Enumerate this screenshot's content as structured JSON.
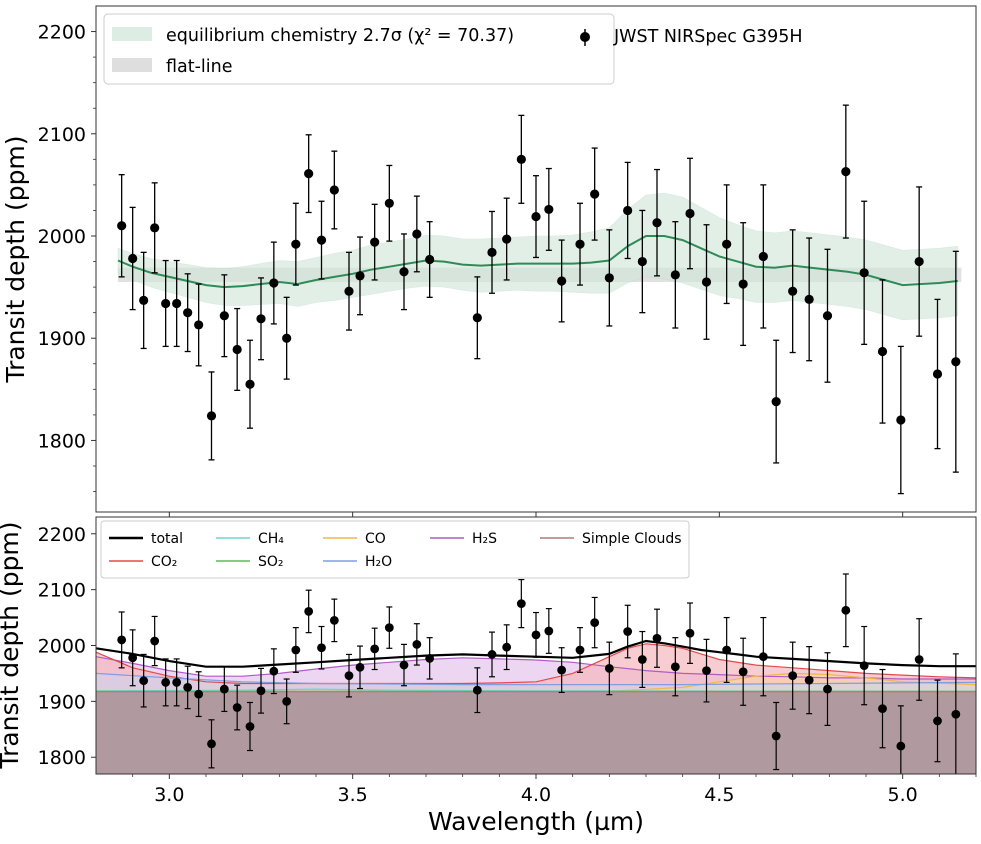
{
  "chart_data": [
    {
      "type": "scatter",
      "panel": "top",
      "title": "",
      "xlabel": "",
      "ylabel": "Transit depth (ppm)",
      "xlim": [
        2.8,
        5.2
      ],
      "ylim": [
        1730,
        2225
      ],
      "yticks": [
        1800,
        1900,
        2000,
        2100,
        2200
      ],
      "grid": false,
      "legend_position": "top",
      "legend": {
        "model": "equilibrium chemistry 2.7σ (χ² = 70.37)",
        "flat": "flat-line",
        "data": "JWST NIRSpec G395H"
      },
      "observations": {
        "name": "JWST NIRSpec G395H",
        "points": [
          [
            2.87,
            2010,
            50
          ],
          [
            2.9,
            1978,
            50
          ],
          [
            2.93,
            1937,
            47
          ],
          [
            2.96,
            2008,
            44
          ],
          [
            2.99,
            1934,
            42
          ],
          [
            3.02,
            1934,
            42
          ],
          [
            3.05,
            1925,
            38
          ],
          [
            3.08,
            1913,
            40
          ],
          [
            3.115,
            1824,
            43
          ],
          [
            3.15,
            1922,
            40
          ],
          [
            3.185,
            1889,
            40
          ],
          [
            3.22,
            1855,
            43
          ],
          [
            3.25,
            1919,
            40
          ],
          [
            3.285,
            1954,
            40
          ],
          [
            3.32,
            1900,
            40
          ],
          [
            3.345,
            1992,
            40
          ],
          [
            3.38,
            2061,
            38
          ],
          [
            3.415,
            1996,
            38
          ],
          [
            3.45,
            2045,
            38
          ],
          [
            3.49,
            1946,
            38
          ],
          [
            3.52,
            1961,
            38
          ],
          [
            3.56,
            1994,
            37
          ],
          [
            3.6,
            2032,
            37
          ],
          [
            3.64,
            1965,
            37
          ],
          [
            3.675,
            2002,
            37
          ],
          [
            3.71,
            1977,
            37
          ],
          [
            3.84,
            1920,
            40
          ],
          [
            3.88,
            1984,
            40
          ],
          [
            3.92,
            1997,
            40
          ],
          [
            3.96,
            2075,
            43
          ],
          [
            4.0,
            2019,
            40
          ],
          [
            4.035,
            2026,
            40
          ],
          [
            4.07,
            1956,
            40
          ],
          [
            4.12,
            1992,
            40
          ],
          [
            4.16,
            2041,
            45
          ],
          [
            4.2,
            1959,
            47
          ],
          [
            4.25,
            2025,
            47
          ],
          [
            4.29,
            1975,
            50
          ],
          [
            4.33,
            2013,
            52
          ],
          [
            4.38,
            1962,
            52
          ],
          [
            4.42,
            2022,
            54
          ],
          [
            4.465,
            1955,
            56
          ],
          [
            4.52,
            1992,
            58
          ],
          [
            4.565,
            1953,
            60
          ],
          [
            4.62,
            1980,
            70
          ],
          [
            4.655,
            1838,
            60
          ],
          [
            4.7,
            1946,
            60
          ],
          [
            4.745,
            1938,
            60
          ],
          [
            4.795,
            1922,
            65
          ],
          [
            4.845,
            2063,
            65
          ],
          [
            4.895,
            1964,
            70
          ],
          [
            4.945,
            1887,
            70
          ],
          [
            4.995,
            1820,
            72
          ],
          [
            5.045,
            1975,
            73
          ],
          [
            5.095,
            1865,
            73
          ],
          [
            5.145,
            1877,
            108
          ]
        ]
      },
      "model_line": {
        "name": "equilibrium chemistry",
        "x": [
          2.86,
          2.9,
          2.95,
          3.0,
          3.05,
          3.1,
          3.15,
          3.2,
          3.25,
          3.3,
          3.35,
          3.4,
          3.45,
          3.5,
          3.55,
          3.6,
          3.65,
          3.7,
          3.75,
          3.8,
          3.85,
          3.9,
          3.95,
          4.0,
          4.05,
          4.1,
          4.15,
          4.2,
          4.25,
          4.3,
          4.35,
          4.4,
          4.45,
          4.5,
          4.55,
          4.6,
          4.65,
          4.7,
          4.75,
          4.8,
          4.85,
          4.9,
          4.95,
          5.0,
          5.05,
          5.1,
          5.15
        ],
        "y": [
          1976,
          1970,
          1964,
          1960,
          1956,
          1952,
          1950,
          1951,
          1953,
          1955,
          1953,
          1957,
          1960,
          1963,
          1967,
          1970,
          1973,
          1976,
          1975,
          1972,
          1971,
          1972,
          1973,
          1973,
          1973,
          1973,
          1974,
          1976,
          1990,
          2000,
          2000,
          1996,
          1988,
          1980,
          1975,
          1970,
          1969,
          1971,
          1969,
          1967,
          1965,
          1962,
          1957,
          1952,
          1953,
          1954,
          1956
        ],
        "sigma_band": [
          12,
          13,
          14,
          15,
          16,
          17,
          18,
          19,
          20,
          21,
          22,
          22,
          23,
          23,
          24,
          24,
          24,
          25,
          25,
          25,
          26,
          26,
          26,
          27,
          27,
          28,
          30,
          32,
          36,
          40,
          42,
          42,
          40,
          38,
          36,
          35,
          34,
          34,
          34,
          34,
          34,
          34,
          34,
          34,
          34,
          34,
          34
        ]
      },
      "flat_line": {
        "y": 1962,
        "band": 7,
        "x_range": [
          2.86,
          5.16
        ]
      }
    },
    {
      "type": "area",
      "panel": "bottom",
      "title": "",
      "xlabel": "Wavelength (µm)",
      "ylabel": "Transit depth (ppm)",
      "xlim": [
        2.8,
        5.2
      ],
      "ylim": [
        1770,
        2230
      ],
      "xticks": [
        3.0,
        3.5,
        4.0,
        4.5,
        5.0
      ],
      "xtick_labels": [
        "3.0",
        "3.5",
        "4.0",
        "4.5",
        "5.0"
      ],
      "yticks": [
        1800,
        1900,
        2000,
        2100,
        2200
      ],
      "grid": false,
      "legend_position": "top-left",
      "legend": [
        {
          "name": "total",
          "color": "#000000"
        },
        {
          "name": "CO₂",
          "color": "#e24a4a"
        },
        {
          "name": "CH₄",
          "color": "#6fd5c9"
        },
        {
          "name": "SO₂",
          "color": "#5fb85c"
        },
        {
          "name": "CO",
          "color": "#f1b64c"
        },
        {
          "name": "H₂O",
          "color": "#7f9fe0"
        },
        {
          "name": "H₂S",
          "color": "#b05cc4"
        },
        {
          "name": "Simple Clouds",
          "color": "#b07a7a"
        }
      ],
      "total": {
        "x": [
          2.8,
          2.9,
          3.0,
          3.1,
          3.2,
          3.3,
          3.4,
          3.5,
          3.6,
          3.7,
          3.8,
          3.9,
          4.0,
          4.1,
          4.2,
          4.25,
          4.3,
          4.35,
          4.4,
          4.45,
          4.5,
          4.55,
          4.6,
          4.7,
          4.8,
          4.9,
          5.0,
          5.1,
          5.2
        ],
        "y": [
          1995,
          1985,
          1972,
          1962,
          1962,
          1966,
          1970,
          1974,
          1978,
          1982,
          1984,
          1982,
          1980,
          1978,
          1985,
          1998,
          2008,
          2004,
          1998,
          1992,
          1988,
          1984,
          1980,
          1976,
          1972,
          1968,
          1965,
          1963,
          1963
        ]
      },
      "clouds_level": 1917,
      "co2": {
        "x": [
          2.8,
          2.9,
          3.0,
          3.1,
          3.2,
          3.3,
          3.4,
          3.5,
          3.6,
          3.7,
          3.8,
          3.9,
          4.0,
          4.1,
          4.15,
          4.2,
          4.25,
          4.3,
          4.35,
          4.4,
          4.45,
          4.5,
          4.6,
          4.7,
          4.8,
          4.9,
          5.0,
          5.1,
          5.2
        ],
        "y": [
          1988,
          1960,
          1945,
          1935,
          1932,
          1932,
          1932,
          1932,
          1932,
          1932,
          1932,
          1933,
          1935,
          1950,
          1965,
          1980,
          1995,
          2003,
          2000,
          1995,
          1985,
          1975,
          1965,
          1960,
          1955,
          1950,
          1947,
          1944,
          1942
        ]
      },
      "h2s": {
        "x": [
          2.8,
          2.9,
          3.0,
          3.1,
          3.2,
          3.3,
          3.4,
          3.5,
          3.6,
          3.7,
          3.8,
          3.9,
          4.0,
          4.1,
          4.2,
          4.3,
          4.4,
          4.5,
          4.6,
          4.7,
          4.8,
          4.9,
          5.0,
          5.1,
          5.2
        ],
        "y": [
          1980,
          1968,
          1955,
          1945,
          1945,
          1950,
          1958,
          1965,
          1970,
          1975,
          1978,
          1976,
          1974,
          1970,
          1962,
          1955,
          1950,
          1948,
          1945,
          1944,
          1942,
          1942,
          1940,
          1940,
          1940
        ]
      },
      "h2o": {
        "x": [
          2.8,
          3.0,
          3.2,
          3.4,
          3.6,
          3.8,
          4.0,
          4.2,
          4.4,
          4.6,
          4.8,
          5.0,
          5.2
        ],
        "y": [
          1950,
          1942,
          1935,
          1932,
          1931,
          1930,
          1930,
          1930,
          1930,
          1931,
          1932,
          1933,
          1934
        ]
      },
      "co": {
        "x": [
          2.8,
          3.5,
          4.2,
          4.4,
          4.5,
          4.6,
          4.7,
          4.8,
          4.9,
          5.0,
          5.2
        ],
        "y": [
          1918,
          1918,
          1918,
          1925,
          1935,
          1945,
          1950,
          1948,
          1942,
          1935,
          1930
        ]
      },
      "ch4": {
        "x": [
          2.8,
          3.2,
          3.4,
          3.6,
          4.0,
          5.2
        ],
        "y": [
          1919,
          1920,
          1922,
          1920,
          1919,
          1918
        ]
      },
      "so2": {
        "x": [
          2.8,
          5.2
        ],
        "y": [
          1918,
          1918
        ]
      }
    }
  ]
}
